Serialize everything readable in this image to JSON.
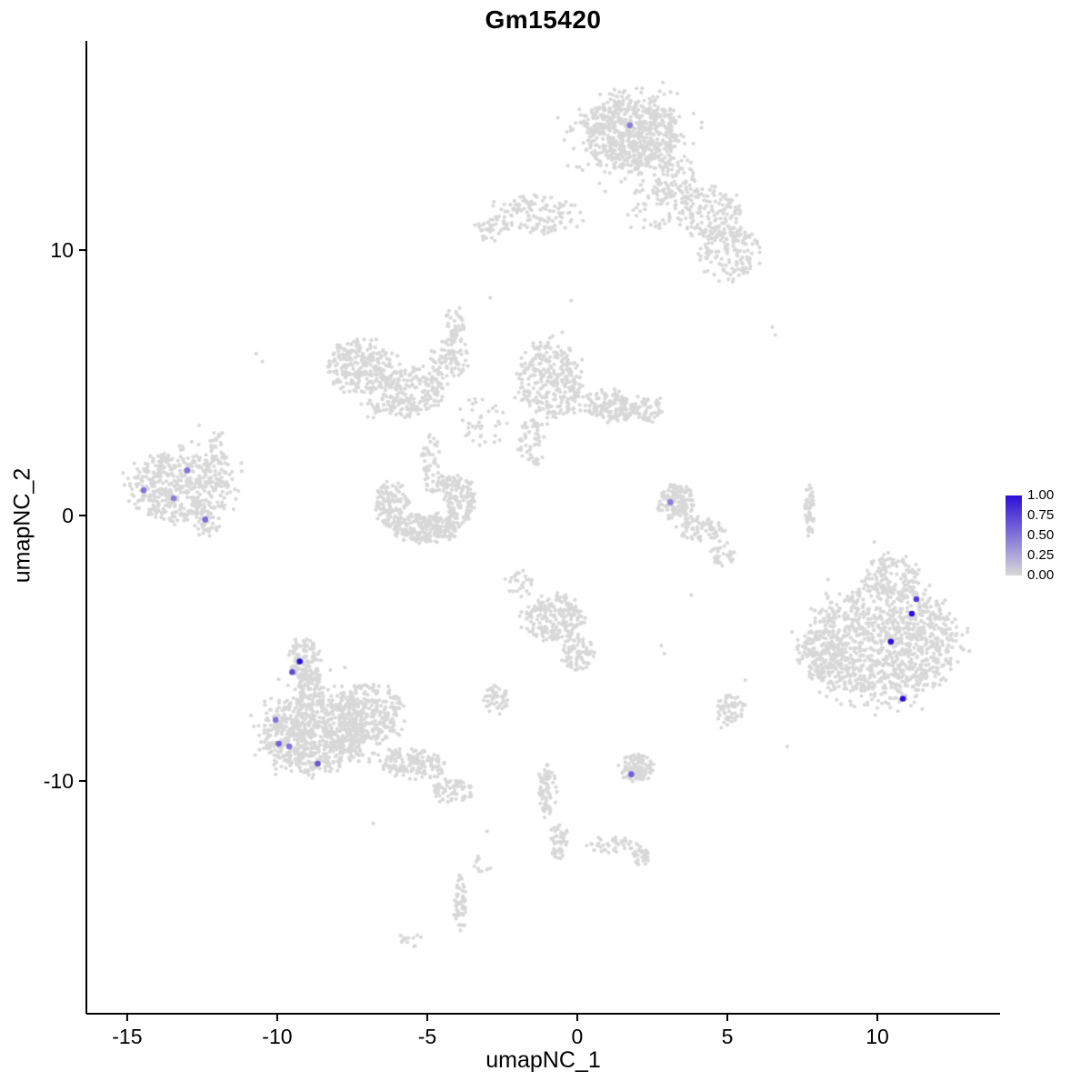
{
  "chart_data": {
    "type": "scatter",
    "title": "Gm15420",
    "xlabel": "umapNC_1",
    "ylabel": "umapNC_2",
    "xlim": [
      -16.36,
      14.09
    ],
    "ylim": [
      -18.77,
      17.88
    ],
    "x_tick_labels": [
      "-15",
      "-10",
      "-5",
      "0",
      "5",
      "10"
    ],
    "y_tick_labels": [
      "-10",
      "0",
      "10"
    ],
    "grid": false,
    "axis_color": "#000000",
    "point_color_background": "#D8D8D8",
    "legend": {
      "position": "right",
      "tick_labels": [
        "1.00",
        "0.75",
        "0.50",
        "0.25",
        "0.00"
      ],
      "color_low": "#D9D9D9",
      "color_high": "#2B0FD8"
    },
    "background_clusters": [
      {
        "x": 1.8,
        "y": 14.4,
        "rx": 1.6,
        "ry": 1.4,
        "n": 650
      },
      {
        "x": 1.8,
        "y": 14.2,
        "rx": 2.4,
        "ry": 2.1,
        "n": 120
      },
      {
        "x": 3.3,
        "y": 12.6,
        "rx": 0.8,
        "ry": 0.9,
        "n": 90
      },
      {
        "x": 4.4,
        "y": 11.4,
        "rx": 1.1,
        "ry": 1.0,
        "n": 150
      },
      {
        "x": 5.1,
        "y": 9.9,
        "rx": 1.0,
        "ry": 1.1,
        "n": 150
      },
      {
        "x": 2.6,
        "y": 11.6,
        "rx": 0.9,
        "ry": 1.1,
        "n": 50
      },
      {
        "x": -1.4,
        "y": 11.3,
        "rx": 1.5,
        "ry": 0.8,
        "n": 140
      },
      {
        "x": -2.9,
        "y": 10.8,
        "rx": 0.5,
        "ry": 0.5,
        "n": 30
      },
      {
        "x": -7.2,
        "y": 5.6,
        "rx": 1.2,
        "ry": 1.0,
        "n": 260
      },
      {
        "x": -5.4,
        "y": 4.7,
        "rx": 1.0,
        "ry": 0.9,
        "n": 170
      },
      {
        "x": -4.3,
        "y": 5.9,
        "rx": 0.6,
        "ry": 0.9,
        "n": 80
      },
      {
        "x": -4.1,
        "y": 7.2,
        "rx": 0.4,
        "ry": 0.7,
        "n": 40
      },
      {
        "x": -6.3,
        "y": 4.1,
        "rx": 0.9,
        "ry": 0.5,
        "n": 60
      },
      {
        "x": -0.95,
        "y": 5.1,
        "rx": 1.1,
        "ry": 1.5,
        "n": 300
      },
      {
        "x": 1.1,
        "y": 4.1,
        "rx": 1.0,
        "ry": 0.6,
        "n": 150
      },
      {
        "x": 2.4,
        "y": 4.0,
        "rx": 0.5,
        "ry": 0.5,
        "n": 50
      },
      {
        "x": -1.5,
        "y": 2.8,
        "rx": 0.5,
        "ry": 0.9,
        "n": 60
      },
      {
        "x": -3.2,
        "y": 3.6,
        "rx": 0.8,
        "ry": 1.0,
        "n": 40
      },
      {
        "x": -4.9,
        "y": 2.3,
        "rx": 0.3,
        "ry": 0.8,
        "n": 35
      },
      {
        "x": -6.2,
        "y": 0.4,
        "rx": 0.6,
        "ry": 0.9,
        "n": 130
      },
      {
        "x": -5.0,
        "y": -0.5,
        "rx": 1.1,
        "ry": 0.55,
        "n": 240
      },
      {
        "x": -3.9,
        "y": 0.6,
        "rx": 0.5,
        "ry": 0.9,
        "n": 130
      },
      {
        "x": -4.6,
        "y": 1.2,
        "rx": 0.5,
        "ry": 0.4,
        "n": 40
      },
      {
        "x": -13.2,
        "y": 1.1,
        "rx": 1.7,
        "ry": 1.3,
        "n": 430
      },
      {
        "x": -13.0,
        "y": 1.0,
        "rx": 2.1,
        "ry": 1.7,
        "n": 70
      },
      {
        "x": -11.9,
        "y": 2.5,
        "rx": 0.35,
        "ry": 0.7,
        "n": 40
      },
      {
        "x": -12.3,
        "y": -0.3,
        "rx": 0.45,
        "ry": 0.5,
        "n": 40
      },
      {
        "x": 3.3,
        "y": 0.5,
        "rx": 0.65,
        "ry": 0.65,
        "n": 130
      },
      {
        "x": 4.1,
        "y": -0.5,
        "rx": 0.8,
        "ry": 0.45,
        "n": 70
      },
      {
        "x": 4.9,
        "y": -1.4,
        "rx": 0.45,
        "ry": 0.5,
        "n": 30
      },
      {
        "x": 7.75,
        "y": 0.2,
        "rx": 0.18,
        "ry": 1.0,
        "n": 45
      },
      {
        "x": 10.2,
        "y": -4.8,
        "rx": 2.4,
        "ry": 2.2,
        "n": 950
      },
      {
        "x": 10.0,
        "y": -4.8,
        "rx": 3.0,
        "ry": 2.7,
        "n": 180
      },
      {
        "x": 10.5,
        "y": -2.3,
        "rx": 1.0,
        "ry": 0.8,
        "n": 110
      },
      {
        "x": 8.1,
        "y": -5.3,
        "rx": 0.8,
        "ry": 1.0,
        "n": 110
      },
      {
        "x": -9.1,
        "y": -5.4,
        "rx": 0.55,
        "ry": 0.75,
        "n": 110
      },
      {
        "x": -8.9,
        "y": -6.4,
        "rx": 0.45,
        "ry": 0.55,
        "n": 70
      },
      {
        "x": -8.8,
        "y": -8.2,
        "rx": 1.7,
        "ry": 1.5,
        "n": 700
      },
      {
        "x": -6.9,
        "y": -7.5,
        "rx": 1.1,
        "ry": 1.1,
        "n": 280
      },
      {
        "x": -5.5,
        "y": -9.4,
        "rx": 1.1,
        "ry": 0.6,
        "n": 150
      },
      {
        "x": -4.1,
        "y": -10.4,
        "rx": 0.7,
        "ry": 0.45,
        "n": 70
      },
      {
        "x": -8.4,
        "y": -8.0,
        "rx": 2.4,
        "ry": 2.1,
        "n": 110
      },
      {
        "x": -0.8,
        "y": -3.9,
        "rx": 1.0,
        "ry": 0.9,
        "n": 210
      },
      {
        "x": 0.0,
        "y": -5.2,
        "rx": 0.55,
        "ry": 0.65,
        "n": 80
      },
      {
        "x": -1.9,
        "y": -2.6,
        "rx": 0.4,
        "ry": 0.5,
        "n": 25
      },
      {
        "x": -2.7,
        "y": -6.9,
        "rx": 0.4,
        "ry": 0.55,
        "n": 55
      },
      {
        "x": 5.1,
        "y": -7.3,
        "rx": 0.5,
        "ry": 0.55,
        "n": 55
      },
      {
        "x": 2.0,
        "y": -9.5,
        "rx": 0.6,
        "ry": 0.5,
        "n": 120
      },
      {
        "x": -1.0,
        "y": -10.3,
        "rx": 0.3,
        "ry": 1.0,
        "n": 70
      },
      {
        "x": -0.6,
        "y": -12.3,
        "rx": 0.3,
        "ry": 0.7,
        "n": 45
      },
      {
        "x": 1.2,
        "y": -12.4,
        "rx": 0.9,
        "ry": 0.3,
        "n": 40
      },
      {
        "x": 2.1,
        "y": -12.8,
        "rx": 0.35,
        "ry": 0.35,
        "n": 30
      },
      {
        "x": -3.9,
        "y": -14.6,
        "rx": 0.2,
        "ry": 1.0,
        "n": 55
      },
      {
        "x": -5.5,
        "y": -16.0,
        "rx": 0.4,
        "ry": 0.35,
        "n": 14
      },
      {
        "x": -3.2,
        "y": -13.2,
        "rx": 0.3,
        "ry": 0.4,
        "n": 12
      }
    ],
    "background_singles": [
      [
        -10.7,
        6.1
      ],
      [
        -10.5,
        5.8
      ],
      [
        6.5,
        7.1
      ],
      [
        6.6,
        6.8
      ],
      [
        -2.9,
        8.2
      ],
      [
        -0.2,
        8.1
      ],
      [
        2.8,
        -4.9
      ],
      [
        2.9,
        -5.2
      ],
      [
        3.8,
        -3.0
      ],
      [
        4.8,
        -8.0
      ],
      [
        7.0,
        -8.7
      ],
      [
        -2.4,
        -2.4
      ],
      [
        9.9,
        -1.0
      ],
      [
        -12.6,
        3.4
      ],
      [
        -0.5,
        6.9
      ],
      [
        5.6,
        -6.2
      ],
      [
        -6.8,
        -11.6
      ],
      [
        -3.0,
        -11.9
      ]
    ],
    "expressing_points": [
      {
        "x": 1.75,
        "y": 14.7,
        "value": 0.45
      },
      {
        "x": -14.45,
        "y": 0.95,
        "value": 0.5
      },
      {
        "x": -13.45,
        "y": 0.65,
        "value": 0.45
      },
      {
        "x": -13.0,
        "y": 1.7,
        "value": 0.5
      },
      {
        "x": -12.4,
        "y": -0.15,
        "value": 0.55
      },
      {
        "x": 3.1,
        "y": 0.5,
        "value": 0.45
      },
      {
        "x": -9.25,
        "y": -5.5,
        "value": 1.0
      },
      {
        "x": -9.5,
        "y": -5.9,
        "value": 0.7
      },
      {
        "x": -10.05,
        "y": -7.7,
        "value": 0.5
      },
      {
        "x": -9.95,
        "y": -8.6,
        "value": 0.6
      },
      {
        "x": -9.6,
        "y": -8.7,
        "value": 0.5
      },
      {
        "x": -8.65,
        "y": -9.35,
        "value": 0.65
      },
      {
        "x": 1.8,
        "y": -9.75,
        "value": 0.6
      },
      {
        "x": 11.3,
        "y": -3.15,
        "value": 0.8
      },
      {
        "x": 11.15,
        "y": -3.7,
        "value": 1.0
      },
      {
        "x": 10.45,
        "y": -4.75,
        "value": 1.0
      },
      {
        "x": 10.85,
        "y": -6.9,
        "value": 1.0
      }
    ]
  }
}
